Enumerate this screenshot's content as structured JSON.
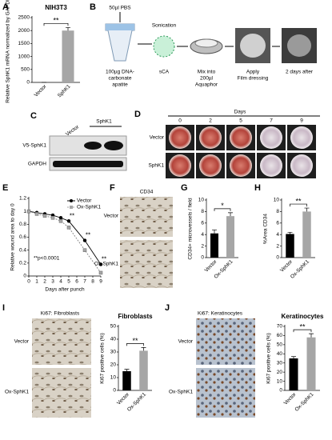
{
  "panel_labels": [
    "A",
    "B",
    "C",
    "D",
    "E",
    "F",
    "G",
    "H",
    "I",
    "J"
  ],
  "b": {
    "pbs": "50µl PBS",
    "sonication": "Sonication",
    "dna": [
      "100µg DNA-",
      "carbonate",
      "apatite"
    ],
    "sca": "sCA",
    "mix": [
      "Mix into",
      "200µl",
      "Aquaphor"
    ],
    "apply": [
      "Apply",
      "Film dressing"
    ],
    "after": "2 days after"
  },
  "c": {
    "vector": "Vector",
    "sphk1": "SphK1",
    "v5": "V5-SphK1",
    "gapdh": "GAPDH"
  },
  "d": {
    "title": "Days",
    "days": [
      "0",
      "2",
      "5",
      "7",
      "9"
    ],
    "rows": [
      "Vector",
      "SphK1"
    ]
  },
  "f": {
    "title": "CD34",
    "rows": [
      "Vector",
      "Ox-SphK1"
    ]
  },
  "i": {
    "title": "Ki67: Fibroblasts",
    "rows": [
      "Vector",
      "Ox-SphK1"
    ]
  },
  "j": {
    "title": "Ki67: Keratinocytes",
    "rows": [
      "Vector",
      "Ox-SphK1"
    ]
  },
  "chart_data": [
    {
      "type": "bar",
      "title": "NIH3T3",
      "y_label": "Relative SphK1 mRNA normalized by GAPDH",
      "categories": [
        "Vector",
        "SphK1"
      ],
      "values": [
        1,
        2000
      ],
      "errors": [
        0,
        120
      ],
      "colors": [
        "#000000",
        "#a6a6a6"
      ],
      "ylim": [
        0,
        2500
      ],
      "yticks": [
        0,
        500,
        1000,
        1500,
        2000,
        2500
      ],
      "annotation": "**"
    },
    {
      "type": "line",
      "y_label": "Relative wound area to day 0",
      "x_label": "Days after punch",
      "x": [
        0,
        1,
        2,
        3,
        4,
        5,
        7,
        9
      ],
      "series": [
        {
          "name": "Vector",
          "color": "#000000",
          "values": [
            1,
            0.98,
            0.96,
            0.94,
            0.9,
            0.85,
            0.55,
            0.18
          ]
        },
        {
          "name": "Ox-SphK1",
          "color": "#a6a6a6",
          "values": [
            1,
            0.96,
            0.93,
            0.9,
            0.85,
            0.75,
            0.4,
            0.05
          ]
        }
      ],
      "xlim": [
        0,
        9
      ],
      "xticks": [
        0,
        1,
        2,
        3,
        4,
        5,
        6,
        7,
        8,
        9
      ],
      "ylim": [
        0,
        1.2
      ],
      "yticks": [
        0,
        0.2,
        0.4,
        0.6,
        0.8,
        1,
        1.2
      ],
      "annotations": [
        "**",
        "**",
        "**"
      ],
      "note": "**p<0.0001"
    },
    {
      "type": "bar",
      "y_label": "CD34+ microvessels / field",
      "categories": [
        "Vector",
        "Ox-SphK1"
      ],
      "values": [
        4.2,
        7.2
      ],
      "errors": [
        0.6,
        0.6
      ],
      "colors": [
        "#000000",
        "#a6a6a6"
      ],
      "ylim": [
        0,
        10
      ],
      "yticks": [
        0,
        2,
        4,
        6,
        8,
        10
      ],
      "annotation": "*"
    },
    {
      "type": "bar",
      "y_label": "%Area CD34",
      "categories": [
        "Vector",
        "Ox-SphK1"
      ],
      "values": [
        4.1,
        8
      ],
      "errors": [
        0.3,
        0.6
      ],
      "colors": [
        "#000000",
        "#a6a6a6"
      ],
      "ylim": [
        0,
        10
      ],
      "yticks": [
        0,
        2,
        4,
        6,
        8,
        10
      ],
      "annotation": "**"
    },
    {
      "type": "bar",
      "title": "Fibroblasts",
      "y_label": "Ki67 positive cells (%)",
      "categories": [
        "Vector",
        "Ox-SphK1"
      ],
      "values": [
        15,
        31
      ],
      "errors": [
        1.5,
        2.5
      ],
      "colors": [
        "#000000",
        "#a6a6a6"
      ],
      "ylim": [
        0,
        50
      ],
      "yticks": [
        0,
        10,
        20,
        30,
        40,
        50
      ],
      "annotation": "**"
    },
    {
      "type": "bar",
      "title": "Keratinocytes",
      "y_label": "Ki67 positive cells (%)",
      "categories": [
        "Vector",
        "Ox-SphK1"
      ],
      "values": [
        35,
        58
      ],
      "errors": [
        2,
        4
      ],
      "colors": [
        "#000000",
        "#a6a6a6"
      ],
      "ylim": [
        0,
        70
      ],
      "yticks": [
        0,
        10,
        20,
        30,
        40,
        50,
        60,
        70
      ],
      "annotation": "**"
    }
  ]
}
